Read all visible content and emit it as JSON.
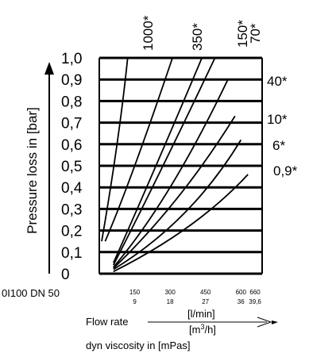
{
  "chart_data": {
    "type": "line",
    "ylabel": "Pressure loss in [bar]",
    "ylim": [
      0,
      1.0
    ],
    "yticks": [
      "0",
      "0,1",
      "0,2",
      "0,3",
      "0,4",
      "0,5",
      "0,6",
      "0,7",
      "0,8",
      "0,9",
      "1,0"
    ],
    "xlim": [
      0,
      690
    ],
    "xticks_lmin": [
      {
        "v": 150,
        "t": "150"
      },
      {
        "v": 300,
        "t": "300"
      },
      {
        "v": 450,
        "t": "450"
      },
      {
        "v": 600,
        "t": "600"
      },
      {
        "v": 660,
        "t": "660"
      }
    ],
    "xticks_m3h": [
      {
        "v": 150,
        "t": "9"
      },
      {
        "v": 300,
        "t": "18"
      },
      {
        "v": 450,
        "t": "27"
      },
      {
        "v": 600,
        "t": "36"
      },
      {
        "v": 660,
        "t": "39,6"
      }
    ],
    "model": "0I100 DN 50",
    "xlabel": "Flow rate",
    "unit_lmin": "[l/min]",
    "unit_m3h_base": "[m",
    "unit_m3h_sup": "3",
    "unit_m3h_tail": "/h]",
    "viscosity_label": "dyn viscosity in [mPas]",
    "series": [
      {
        "name": "1000*",
        "x": [
          10,
          75,
          120
        ],
        "y": [
          0.15,
          0.6,
          1.0
        ]
      },
      {
        "name": "350*",
        "x": [
          25,
          150,
          310
        ],
        "y": [
          0.15,
          0.5,
          1.0
        ]
      },
      {
        "name": "150*",
        "x": [
          60,
          240,
          435
        ],
        "y": [
          0.05,
          0.5,
          1.0
        ]
      },
      {
        "name": "70*",
        "x": [
          60,
          270,
          490
        ],
        "y": [
          0.04,
          0.5,
          1.0
        ]
      },
      {
        "name": "40*",
        "x": [
          60,
          300,
          545
        ],
        "y": [
          0.03,
          0.4,
          0.9
        ]
      },
      {
        "name": "10*",
        "x": [
          60,
          330,
          575
        ],
        "y": [
          0.025,
          0.35,
          0.73
        ]
      },
      {
        "name": "6*",
        "x": [
          60,
          360,
          600
        ],
        "y": [
          0.02,
          0.28,
          0.62
        ]
      },
      {
        "name": "0,9*",
        "x": [
          60,
          380,
          630
        ],
        "y": [
          0.01,
          0.22,
          0.46
        ]
      }
    ]
  }
}
